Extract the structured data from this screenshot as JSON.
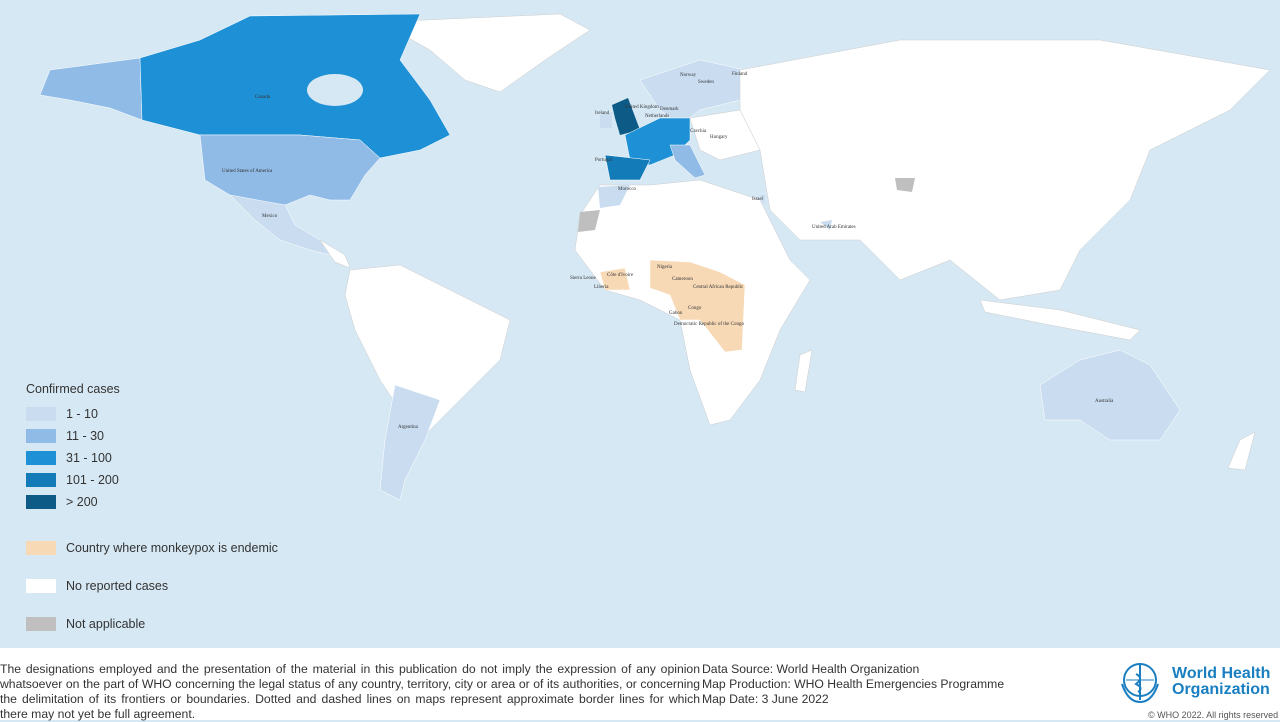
{
  "map": {
    "colors": {
      "ocean": "#d6e8f4",
      "no_cases": "#ffffff",
      "c1_10": "#c9dcf0",
      "c11_30": "#8fbbe6",
      "c31_100": "#1e90d6",
      "c101_200": "#137bb8",
      "c200": "#0d5a86",
      "endemic": "#f7d9b5",
      "na": "#bfbfbf"
    },
    "country_labels": [
      {
        "name": "Canada",
        "category": "31 - 100"
      },
      {
        "name": "United States of America",
        "category": "11 - 30"
      },
      {
        "name": "Mexico",
        "category": "1 - 10"
      },
      {
        "name": "Argentina",
        "category": "1 - 10"
      },
      {
        "name": "Australia",
        "category": "1 - 10"
      },
      {
        "name": "Norway",
        "category": "1 - 10"
      },
      {
        "name": "Sweden",
        "category": "1 - 10"
      },
      {
        "name": "Finland",
        "category": "1 - 10"
      },
      {
        "name": "United Kingdom",
        "category": "> 200"
      },
      {
        "name": "Ireland",
        "category": "1 - 10"
      },
      {
        "name": "Denmark",
        "category": "1 - 10"
      },
      {
        "name": "Netherlands",
        "category": "31 - 100"
      },
      {
        "name": "Czechia",
        "category": "1 - 10"
      },
      {
        "name": "Hungary",
        "category": "1 - 10"
      },
      {
        "name": "Portugal",
        "category": "101 - 200"
      },
      {
        "name": "Morocco",
        "category": "1 - 10"
      },
      {
        "name": "Israel",
        "category": "1 - 10"
      },
      {
        "name": "United Arab Emirates",
        "category": "1 - 10"
      },
      {
        "name": "Nigeria",
        "category": "endemic"
      },
      {
        "name": "Cameroon",
        "category": "endemic"
      },
      {
        "name": "Central African Republic",
        "category": "endemic"
      },
      {
        "name": "Congo",
        "category": "endemic"
      },
      {
        "name": "Gabon",
        "category": "endemic"
      },
      {
        "name": "Democratic Republic of the Congo",
        "category": "endemic"
      },
      {
        "name": "Sierra Leone",
        "category": "endemic"
      },
      {
        "name": "Côte d'Ivoire",
        "category": "endemic"
      },
      {
        "name": "Liberia",
        "category": "endemic"
      }
    ]
  },
  "legend": {
    "title": "Confirmed cases",
    "items": [
      "1 - 10",
      "11 - 30",
      "31 - 100",
      "101 - 200",
      "> 200"
    ],
    "endemic": "Country where monkeypox is endemic",
    "none": "No reported cases",
    "na": "Not applicable"
  },
  "footer": {
    "disclaimer": "The designations employed and the presentation of the material in this publication do not imply the expression of any opinion whatsoever on the part of WHO concerning the legal status of any country, territory, city or area or of its authorities, or concerning the delimitation of its frontiers or boundaries. Dotted and dashed lines on maps represent approximate border lines for which there may not yet be full agreement.",
    "source": "Data Source: World Health Organization",
    "production": "Map Production: WHO Health Emergencies Programme",
    "date": "Map Date: 3 June 2022",
    "org_line1": "World Health",
    "org_line2": "Organization",
    "copyright": "© WHO 2022. All rights reserved"
  }
}
